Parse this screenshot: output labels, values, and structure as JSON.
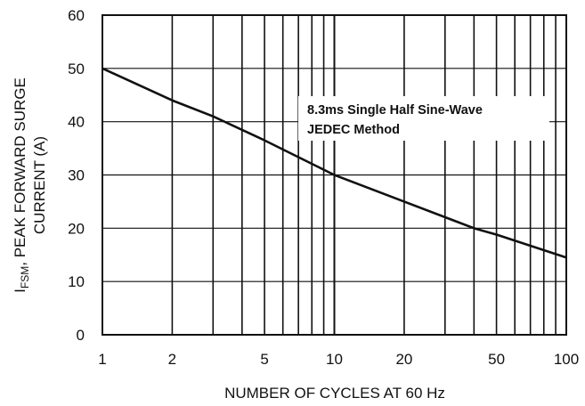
{
  "chart_data": {
    "type": "line",
    "x_scale": "log",
    "x_ticks": [
      1,
      2,
      5,
      10,
      20,
      50,
      100
    ],
    "x_tick_labels": [
      "1",
      "2",
      "5",
      "10",
      "20",
      "50",
      "100"
    ],
    "xlim": [
      1,
      100
    ],
    "ylim": [
      0,
      60
    ],
    "y_ticks": [
      0,
      10,
      20,
      30,
      40,
      50,
      60
    ],
    "y_tick_labels": [
      "0",
      "10",
      "20",
      "30",
      "40",
      "50",
      "60"
    ],
    "grid": true,
    "xlabel": "NUMBER OF CYCLES AT 60 Hz",
    "ylabel_prefix": "I",
    "ylabel_subscript": "FSM",
    "ylabel_line1": ", PEAK FORWARD SURGE",
    "ylabel_line2": "CURRENT (A)",
    "annotation_lines": [
      "8.3ms Single Half Sine-Wave",
      "JEDEC Method"
    ],
    "series": [
      {
        "x": [
          1,
          2,
          3,
          5,
          10,
          20,
          40,
          50,
          100
        ],
        "y": [
          50,
          44,
          41,
          36.5,
          30,
          25,
          20,
          18.8,
          14.5
        ]
      }
    ],
    "colors": {
      "line": "#111111",
      "grid": "#111111",
      "background": "#ffffff"
    }
  }
}
